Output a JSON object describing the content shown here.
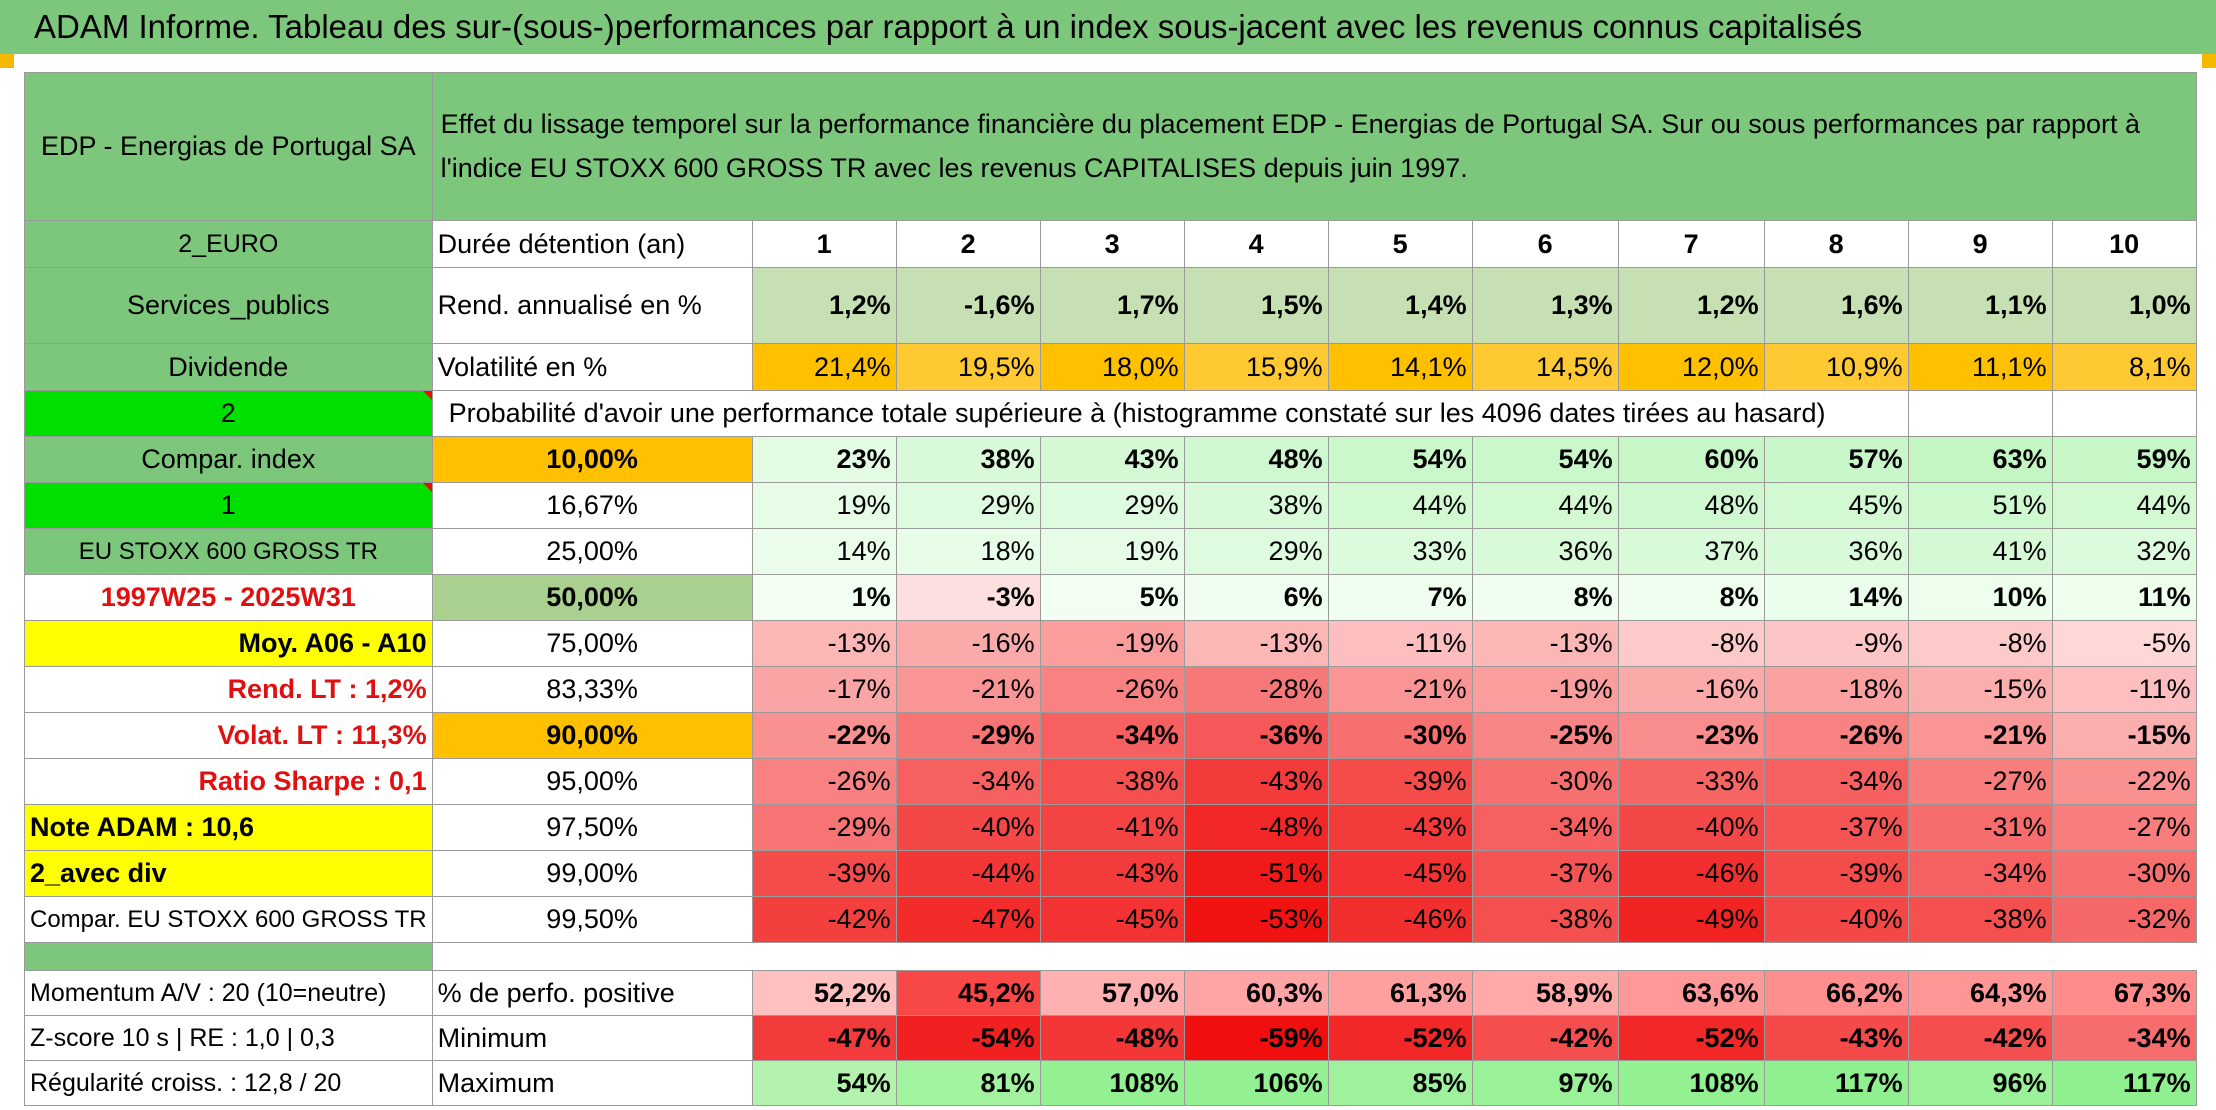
{
  "banner_title": "ADAM Informe. Tableau des sur-(sous-)performances par rapport à un index sous-jacent avec les revenus connus capitalisés",
  "header": {
    "asset_name": "EDP - Energias de Portugal SA",
    "description": "Effet du lissage temporel sur la performance financière du placement EDP - Energias de Portugal SA. Sur ou sous performances par rapport à l'indice EU STOXX 600 GROSS TR avec les revenus CAPITALISES depuis juin 1997."
  },
  "left_labels": {
    "currency": "2_EURO",
    "sector": "Services_publics",
    "dividend": "Dividende",
    "selector_a": "2",
    "compar_index": "Compar. index",
    "selector_b": "1",
    "index_name": "EU STOXX 600 GROSS TR",
    "period": "1997W25 - 2025W31",
    "moy": "Moy. A06 - A10",
    "rend_lt": "Rend. LT :   1,2%",
    "volat_lt": "Volat. LT :   11,3%",
    "sharpe": "Ratio Sharpe :   0,1",
    "note_adam": "Note ADAM : 10,6",
    "avec_div": "2_avec div",
    "compar_full": "Compar. EU STOXX 600 GROSS TR",
    "momentum": "Momentum A/V : 20 (10=neutre)",
    "zscore": "Z-score 10 s | RE : 1,0 | 0,3",
    "regularite": "Régularité croiss. : 12,8 / 20"
  },
  "row_labels": {
    "duree": "Durée détention (an)",
    "rend": "Rend. annualisé en %",
    "vol": "Volatilité en %",
    "proba": "Probabilité d'avoir une performance totale supérieure à (histogramme constaté sur les 4096 dates tirées au hasard)",
    "perfo_pos": "% de perfo. positive",
    "minimum": "Minimum",
    "maximum": "Maximum"
  },
  "years": [
    "1",
    "2",
    "3",
    "4",
    "5",
    "6",
    "7",
    "8",
    "9",
    "10"
  ],
  "rend": [
    "1,2%",
    "-1,6%",
    "1,7%",
    "1,5%",
    "1,4%",
    "1,3%",
    "1,2%",
    "1,6%",
    "1,1%",
    "1,0%"
  ],
  "vol": [
    "21,4%",
    "19,5%",
    "18,0%",
    "15,9%",
    "14,1%",
    "14,5%",
    "12,0%",
    "10,9%",
    "11,1%",
    "8,1%"
  ],
  "percentile_rows": [
    {
      "p": "10,00%",
      "vals": [
        "23%",
        "38%",
        "43%",
        "48%",
        "54%",
        "54%",
        "60%",
        "57%",
        "63%",
        "59%"
      ]
    },
    {
      "p": "16,67%",
      "vals": [
        "19%",
        "29%",
        "29%",
        "38%",
        "44%",
        "44%",
        "48%",
        "45%",
        "51%",
        "44%"
      ]
    },
    {
      "p": "25,00%",
      "vals": [
        "14%",
        "18%",
        "19%",
        "29%",
        "33%",
        "36%",
        "37%",
        "36%",
        "41%",
        "32%"
      ]
    },
    {
      "p": "50,00%",
      "vals": [
        "1%",
        "-3%",
        "5%",
        "6%",
        "7%",
        "8%",
        "8%",
        "14%",
        "10%",
        "11%"
      ]
    },
    {
      "p": "75,00%",
      "vals": [
        "-13%",
        "-16%",
        "-19%",
        "-13%",
        "-11%",
        "-13%",
        "-8%",
        "-9%",
        "-8%",
        "-5%"
      ]
    },
    {
      "p": "83,33%",
      "vals": [
        "-17%",
        "-21%",
        "-26%",
        "-28%",
        "-21%",
        "-19%",
        "-16%",
        "-18%",
        "-15%",
        "-11%"
      ]
    },
    {
      "p": "90,00%",
      "vals": [
        "-22%",
        "-29%",
        "-34%",
        "-36%",
        "-30%",
        "-25%",
        "-23%",
        "-26%",
        "-21%",
        "-15%"
      ]
    },
    {
      "p": "95,00%",
      "vals": [
        "-26%",
        "-34%",
        "-38%",
        "-43%",
        "-39%",
        "-30%",
        "-33%",
        "-34%",
        "-27%",
        "-22%"
      ]
    },
    {
      "p": "97,50%",
      "vals": [
        "-29%",
        "-40%",
        "-41%",
        "-48%",
        "-43%",
        "-34%",
        "-40%",
        "-37%",
        "-31%",
        "-27%"
      ]
    },
    {
      "p": "99,00%",
      "vals": [
        "-39%",
        "-44%",
        "-43%",
        "-51%",
        "-45%",
        "-37%",
        "-46%",
        "-39%",
        "-34%",
        "-30%"
      ]
    },
    {
      "p": "99,50%",
      "vals": [
        "-42%",
        "-47%",
        "-45%",
        "-53%",
        "-46%",
        "-38%",
        "-49%",
        "-40%",
        "-38%",
        "-32%"
      ]
    }
  ],
  "perfo_pos": [
    "52,2%",
    "45,2%",
    "57,0%",
    "60,3%",
    "61,3%",
    "58,9%",
    "63,6%",
    "66,2%",
    "64,3%",
    "67,3%"
  ],
  "minimum": [
    "-47%",
    "-54%",
    "-48%",
    "-59%",
    "-52%",
    "-42%",
    "-52%",
    "-43%",
    "-42%",
    "-34%"
  ],
  "maximum": [
    "54%",
    "81%",
    "108%",
    "106%",
    "85%",
    "97%",
    "108%",
    "117%",
    "96%",
    "117%"
  ],
  "colors": {
    "green": "#7dc77d",
    "bright_green": "#00e000",
    "yellow": "#ffff00",
    "orange": "#ffc000",
    "red_text": "#e01010"
  }
}
